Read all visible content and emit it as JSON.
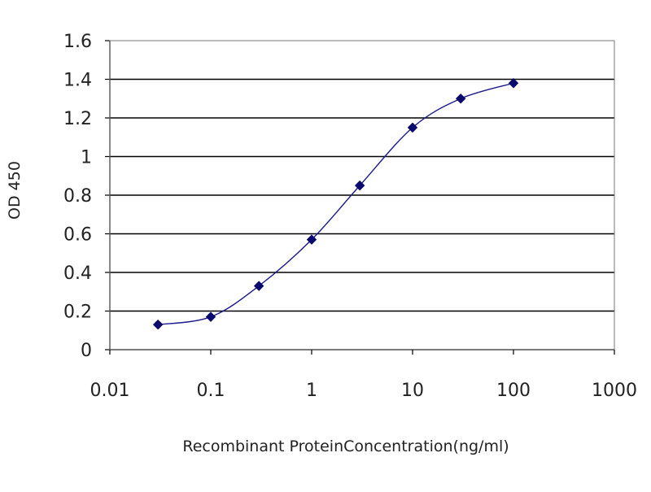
{
  "chart_data": {
    "type": "scatter",
    "title": "",
    "xlabel": "Recombinant ProteinConcentration(ng/ml)",
    "ylabel": "OD 450",
    "xscale": "log",
    "xlim": [
      0.01,
      1000
    ],
    "ylim": [
      0,
      1.6
    ],
    "xticks": [
      0.01,
      0.1,
      1,
      10,
      100,
      1000
    ],
    "xtick_labels": [
      "0.01",
      "0.1",
      "1",
      "10",
      "100",
      "1000"
    ],
    "yticks": [
      0,
      0.2,
      0.4,
      0.6,
      0.8,
      1,
      1.2,
      1.4,
      1.6
    ],
    "ytick_labels": [
      "0",
      "0.2",
      "0.4",
      "0.6",
      "0.8",
      "1",
      "1.2",
      "1.4",
      "1.6"
    ],
    "grid": "horizontal",
    "legend": "none",
    "series": [
      {
        "x": [
          0.03,
          0.1,
          0.3,
          1,
          3,
          10,
          30,
          100
        ],
        "y": [
          0.13,
          0.17,
          0.33,
          0.57,
          0.85,
          1.15,
          1.3,
          1.38
        ],
        "marker": "diamond",
        "connected": true
      }
    ],
    "colors": {
      "series": "#1a1a8c",
      "marker": "#0a0a6e",
      "grid": "#000000",
      "axis": "#000000"
    }
  }
}
